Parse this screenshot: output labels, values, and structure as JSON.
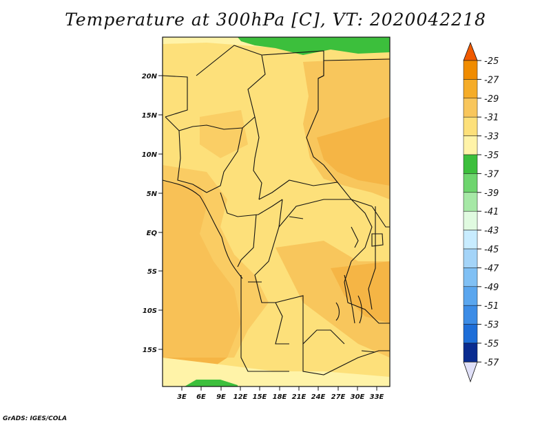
{
  "title": "Temperature at 300hPa [C], VT: 2020042218",
  "footer": "GrADS: IGES/COLA",
  "map": {
    "lat_labels": [
      "20N",
      "15N",
      "10N",
      "5N",
      "EQ",
      "5S",
      "10S",
      "15S"
    ],
    "lon_labels": [
      "3E",
      "6E",
      "9E",
      "12E",
      "15E",
      "18E",
      "21E",
      "24E",
      "27E",
      "30E",
      "33E"
    ]
  },
  "colorbar": {
    "labels": [
      "-25",
      "-27",
      "-29",
      "-31",
      "-33",
      "-35",
      "-37",
      "-39",
      "-41",
      "-43",
      "-45",
      "-47",
      "-49",
      "-51",
      "-53",
      "-55",
      "-57"
    ],
    "colors": [
      "#f05a00",
      "#f08c00",
      "#f5ac28",
      "#f8c65c",
      "#fde07a",
      "#fff3a8",
      "#3cbf3c",
      "#6ed56e",
      "#a6e8a6",
      "#e0fae0",
      "#c8ecff",
      "#a4d4f8",
      "#80c0f4",
      "#5aa6ee",
      "#3c8ce6",
      "#1e6ed8",
      "#1450c0",
      "#0a2c90",
      "#000a78",
      "#e0e0f8"
    ]
  },
  "colors": {
    "land_base": "#fde07a",
    "warm": "#f8c65c",
    "warmer": "#f5b545",
    "cool": "#fff3a8",
    "green": "#3cbf3c",
    "border": "#111111"
  }
}
